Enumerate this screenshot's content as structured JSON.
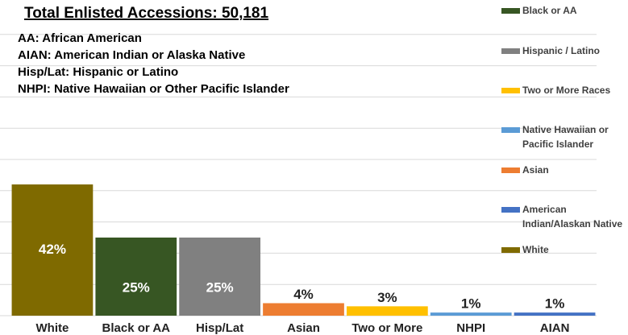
{
  "chart_data": {
    "type": "bar",
    "title": "Total Enlisted Accessions: 50,181",
    "notes": [
      "AA: African American",
      "AIAN: American Indian or Alaska Native",
      "Hisp/Lat: Hispanic or Latino",
      "NHPI: Native Hawaiian or Other Pacific Islander"
    ],
    "categories": [
      "White",
      "Black or AA",
      "Hisp/Lat",
      "Asian",
      "Two or More",
      "NHPI",
      "AIAN"
    ],
    "values": [
      42,
      25,
      25,
      4,
      3,
      1,
      1
    ],
    "value_labels": [
      "42%",
      "25%",
      "25%",
      "4%",
      "3%",
      "1%",
      "1%"
    ],
    "colors": [
      "#7f6a00",
      "#375623",
      "#808080",
      "#ed7d31",
      "#ffc000",
      "#5b9bd5",
      "#4472c4"
    ],
    "ylim": [
      0,
      100
    ],
    "yticks": [
      0,
      10,
      20,
      30,
      40,
      50,
      60,
      70,
      80,
      90
    ],
    "grid": true,
    "legend": [
      {
        "name": [
          "Black or AA"
        ],
        "color": "#375623"
      },
      {
        "name": [
          "Hispanic / Latino"
        ],
        "color": "#808080"
      },
      {
        "name": [
          "Two or More Races"
        ],
        "color": "#ffc000"
      },
      {
        "name": [
          "Native Hawaiian or",
          "Pacific Islander"
        ],
        "color": "#5b9bd5"
      },
      {
        "name": [
          "Asian"
        ],
        "color": "#ed7d31"
      },
      {
        "name": [
          "American",
          "Indian/Alaskan Native"
        ],
        "color": "#4472c4"
      },
      {
        "name": [
          "White"
        ],
        "color": "#7f6a00"
      }
    ]
  }
}
